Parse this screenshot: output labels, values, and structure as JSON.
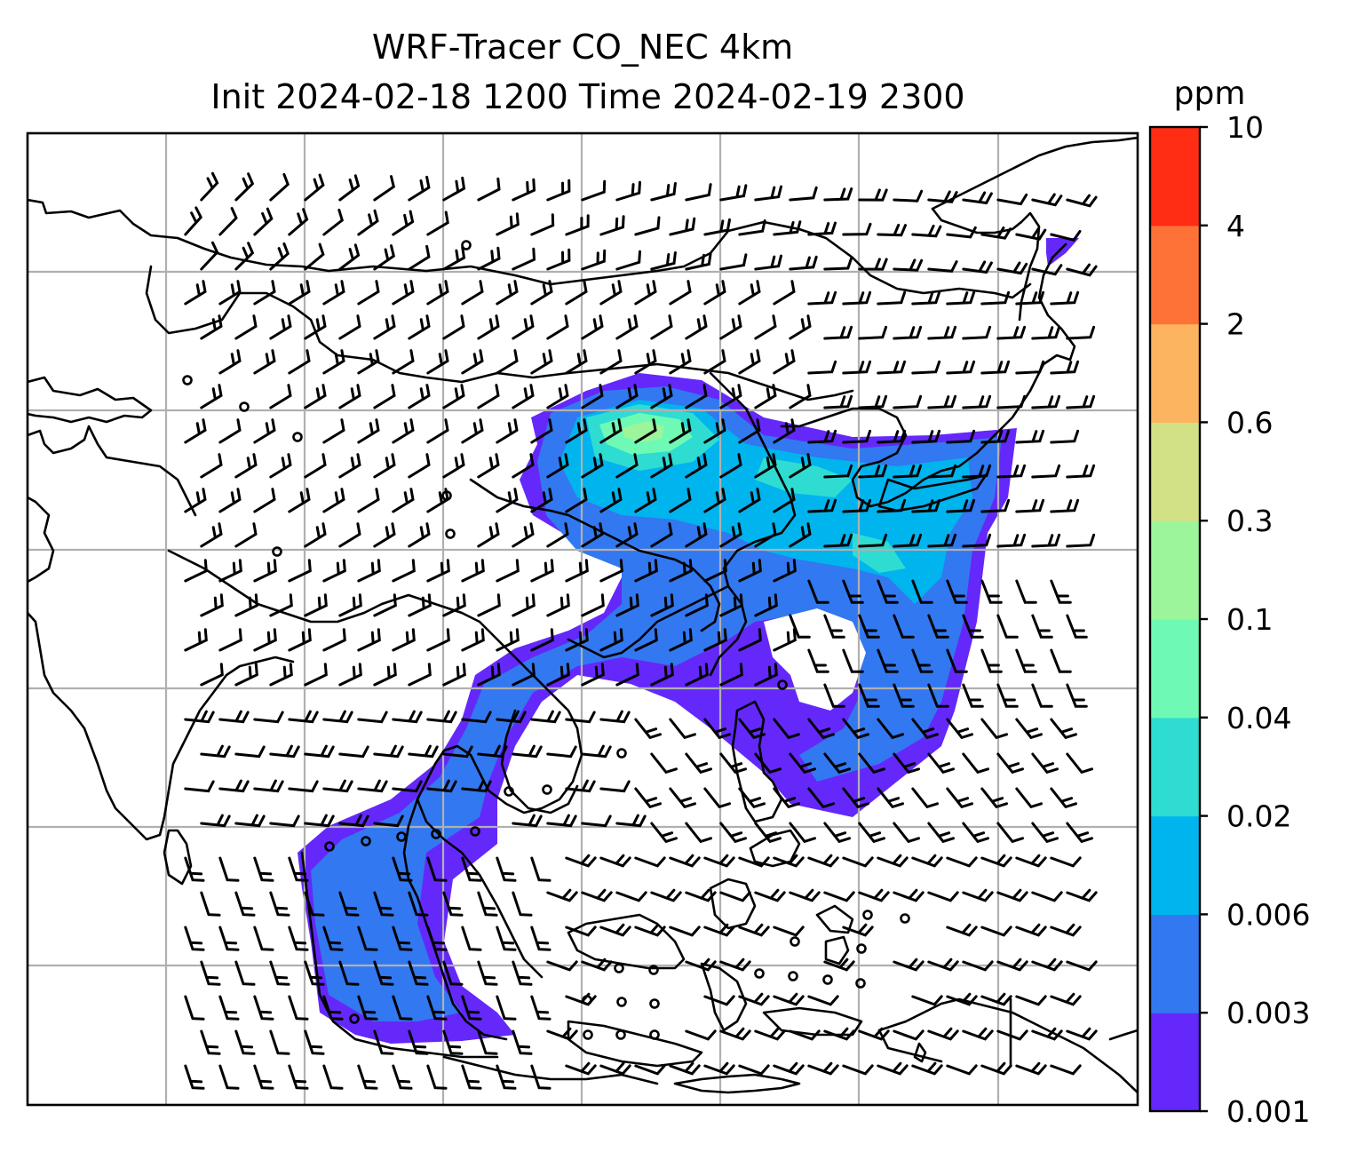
{
  "title": {
    "line1": "WRF-Tracer CO_NEC 4km",
    "line2": "Init 2024-02-18 1200 Time 2024-02-19 2300"
  },
  "colorbar": {
    "unit": "ppm",
    "levels": [
      "0.001",
      "0.003",
      "0.006",
      "0.02",
      "0.04",
      "0.1",
      "0.3",
      "0.6",
      "2",
      "4",
      "10"
    ],
    "colors": [
      "#6428fa",
      "#3278f0",
      "#00b4ee",
      "#2edcd2",
      "#6efab4",
      "#9cf59a",
      "#d2e186",
      "#fdb460",
      "#fe7238",
      "#fe2d14"
    ]
  },
  "map": {
    "background": "#ffffff",
    "gridlines": true,
    "wind_barbs": true,
    "calm_marker": "circle"
  }
}
